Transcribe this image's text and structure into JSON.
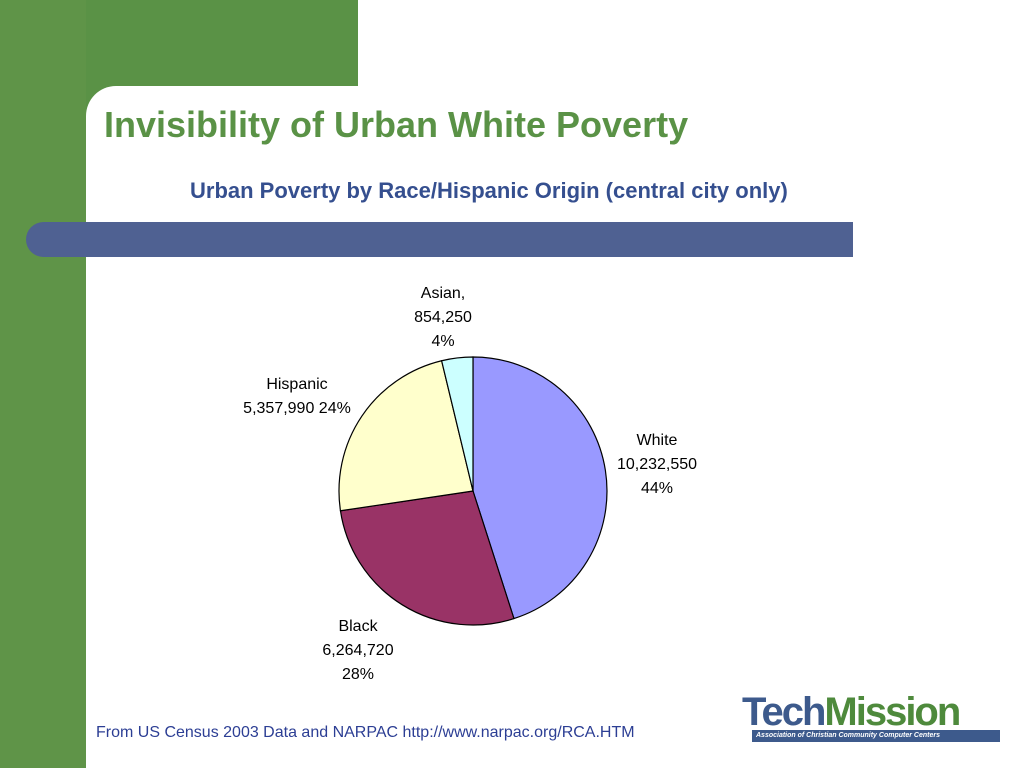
{
  "slide": {
    "title": "Invisibility of Urban White Poverty",
    "footer": "From US Census 2003 Data and NARPAC http://www.narpac.org/RCA.HTM",
    "logo_tech": "Tech",
    "logo_mission": "Mission",
    "logo_tagline": "Association of Christian Community Computer Centers"
  },
  "chart_data": {
    "type": "pie",
    "title": "Urban Poverty by Race/Hispanic Origin (central city only)",
    "slices": [
      {
        "label": [
          "White",
          "10,232,550",
          "44%"
        ],
        "value": 10232550,
        "color": "#9999ff"
      },
      {
        "label": [
          "Black",
          "6,264,720",
          "28%"
        ],
        "value": 6264720,
        "color": "#993366"
      },
      {
        "label": [
          "Hispanic",
          "5,357,990 24%"
        ],
        "value": 5357990,
        "color": "#ffffcc"
      },
      {
        "label": [
          "Asian,",
          "854,250",
          "4%"
        ],
        "value": 854250,
        "color": "#ccffff"
      }
    ],
    "legend": "none",
    "grid": false
  }
}
